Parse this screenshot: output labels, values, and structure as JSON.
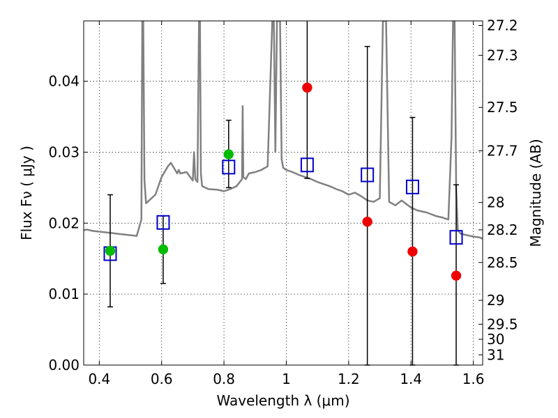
{
  "chart_data": {
    "type": "scatter",
    "title": "",
    "xlabel": "Wavelength  λ (μm)",
    "ylabel": "Flux  Fν  ( μJy )",
    "y2label": "Magnitude (AB)",
    "xlim": [
      0.35,
      1.63
    ],
    "ylim": [
      0.0,
      0.0485
    ],
    "grid": true,
    "x_ticks": [
      0.4,
      0.6,
      0.8,
      1.0,
      1.2,
      1.4,
      1.6
    ],
    "x_tick_labels": [
      "0.4",
      "0.6",
      "0.8",
      "1",
      "1.2",
      "1.4",
      "1.6"
    ],
    "y_ticks": [
      0.0,
      0.01,
      0.02,
      0.03,
      0.04
    ],
    "y_tick_labels": [
      "0.00",
      "0.01",
      "0.02",
      "0.03",
      "0.04"
    ],
    "mag_ticks": [
      27.2,
      27.3,
      27.5,
      27.7,
      28,
      28.2,
      28.5,
      29,
      29.5,
      30,
      31
    ],
    "mag_tick_labels": [
      "27.2",
      "27.3",
      "27.5",
      "27.7",
      "28",
      "28.2",
      "28.5",
      "29",
      "29.5",
      "30",
      "31"
    ],
    "model_spectrum": {
      "color": "#808080",
      "x": [
        0.35,
        0.36,
        0.37,
        0.38,
        0.4,
        0.42,
        0.44,
        0.46,
        0.48,
        0.5,
        0.52,
        0.535,
        0.538,
        0.541,
        0.545,
        0.55,
        0.56,
        0.58,
        0.6,
        0.62,
        0.63,
        0.65,
        0.655,
        0.66,
        0.68,
        0.7,
        0.704,
        0.708,
        0.715,
        0.72,
        0.723,
        0.726,
        0.73,
        0.75,
        0.78,
        0.8,
        0.82,
        0.84,
        0.858,
        0.86,
        0.862,
        0.87,
        0.88,
        0.9,
        0.92,
        0.94,
        0.955,
        0.96,
        0.965,
        0.97,
        0.98,
        0.985,
        0.99,
        1.0,
        1.02,
        1.04,
        1.06,
        1.08,
        1.1,
        1.12,
        1.14,
        1.16,
        1.18,
        1.2,
        1.22,
        1.24,
        1.26,
        1.28,
        1.3,
        1.31,
        1.32,
        1.33,
        1.35,
        1.37,
        1.4,
        1.42,
        1.45,
        1.48,
        1.5,
        1.52,
        1.53,
        1.535,
        1.54,
        1.545,
        1.55,
        1.56,
        1.58,
        1.6,
        1.62,
        1.63
      ],
      "y": [
        0.019,
        0.0191,
        0.019,
        0.0189,
        0.0188,
        0.0187,
        0.0186,
        0.0185,
        0.0184,
        0.0183,
        0.0182,
        0.0205,
        0.0485,
        0.0485,
        0.026,
        0.0228,
        0.0232,
        0.024,
        0.0265,
        0.028,
        0.0285,
        0.027,
        0.0275,
        0.027,
        0.0272,
        0.026,
        0.03,
        0.0262,
        0.0258,
        0.0485,
        0.0485,
        0.027,
        0.0252,
        0.0248,
        0.0247,
        0.0245,
        0.0248,
        0.0252,
        0.0262,
        0.0365,
        0.0265,
        0.0262,
        0.027,
        0.0272,
        0.0275,
        0.028,
        0.0485,
        0.0485,
        0.03,
        0.0485,
        0.0485,
        0.029,
        0.0278,
        0.0275,
        0.0272,
        0.0268,
        0.0265,
        0.0262,
        0.0258,
        0.0255,
        0.0252,
        0.0248,
        0.0245,
        0.024,
        0.0243,
        0.0238,
        0.0232,
        0.023,
        0.0235,
        0.0485,
        0.0485,
        0.023,
        0.0225,
        0.0232,
        0.0222,
        0.0218,
        0.0215,
        0.021,
        0.0208,
        0.0205,
        0.032,
        0.0485,
        0.0485,
        0.025,
        0.019,
        0.0185,
        0.0183,
        0.0181,
        0.018,
        0.0178
      ]
    },
    "series": [
      {
        "marker": "open-square",
        "color": "#0000cc",
        "x": [
          0.435,
          0.605,
          0.815,
          1.067,
          1.26,
          1.405,
          1.545
        ],
        "y": [
          0.0157,
          0.0201,
          0.0279,
          0.0282,
          0.0268,
          0.0251,
          0.018
        ]
      },
      {
        "marker": "filled-circle",
        "color": "#00bb00",
        "x": [
          0.435,
          0.605,
          0.815
        ],
        "y": [
          0.0161,
          0.0163,
          0.0297
        ],
        "err_low": [
          0.0082,
          0.0115,
          0.025
        ],
        "err_high": [
          0.024,
          0.021,
          0.0345
        ]
      },
      {
        "marker": "filled-circle",
        "color": "#ee0000",
        "x": [
          1.067,
          1.26,
          1.405,
          1.545
        ],
        "y": [
          0.0391,
          0.0202,
          0.016,
          0.0126
        ],
        "err_low": [
          0.0263,
          0.0,
          0.0,
          0.0
        ],
        "err_high": [
          0.0485,
          0.0449,
          0.0349,
          0.0254
        ]
      }
    ]
  }
}
